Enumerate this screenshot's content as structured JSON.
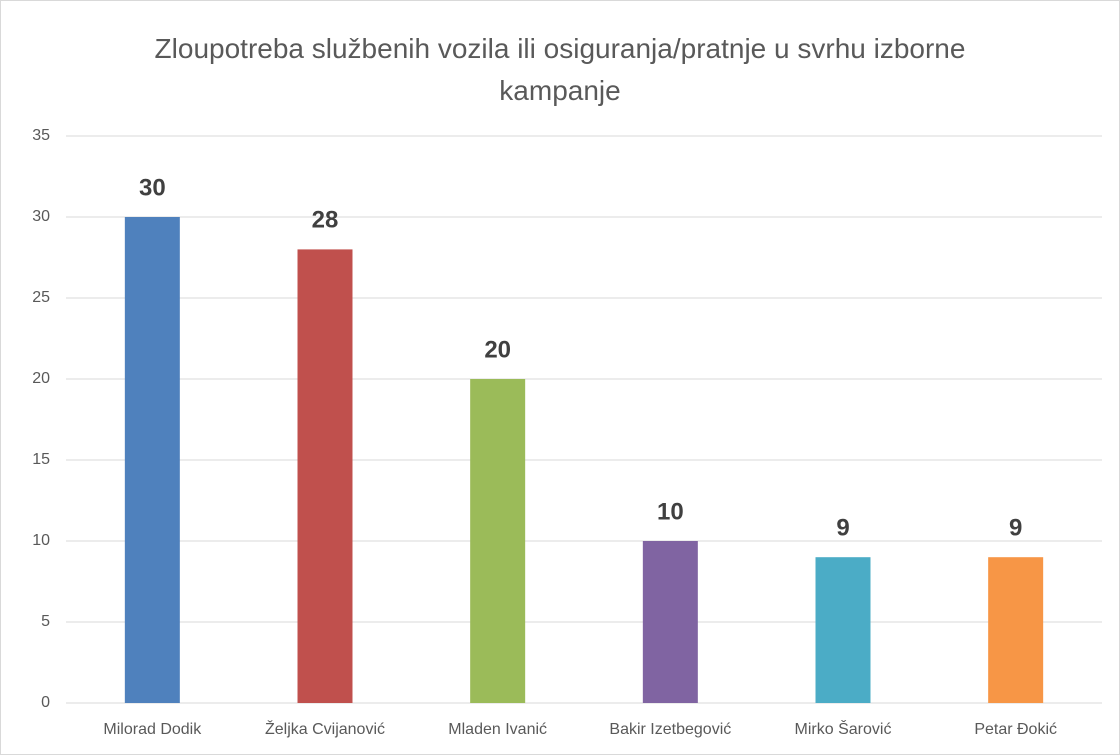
{
  "chart_data": {
    "type": "bar",
    "title": "Zloupotreba službenih vozila ili osiguranja/pratnje u svrhu izborne kampanje",
    "categories": [
      "Milorad Dodik",
      "Željka Cvijanović",
      "Mladen Ivanić",
      "Bakir Izetbegović",
      "Mirko Šarović",
      "Petar Đokić"
    ],
    "values": [
      30,
      28,
      20,
      10,
      9,
      9
    ],
    "colors": [
      "#4f81bd",
      "#c0504d",
      "#9bbb59",
      "#8064a2",
      "#4bacc6",
      "#f79646"
    ],
    "ylim": [
      0,
      35
    ],
    "yticks": [
      0,
      5,
      10,
      15,
      20,
      25,
      30,
      35
    ],
    "grid": true
  }
}
